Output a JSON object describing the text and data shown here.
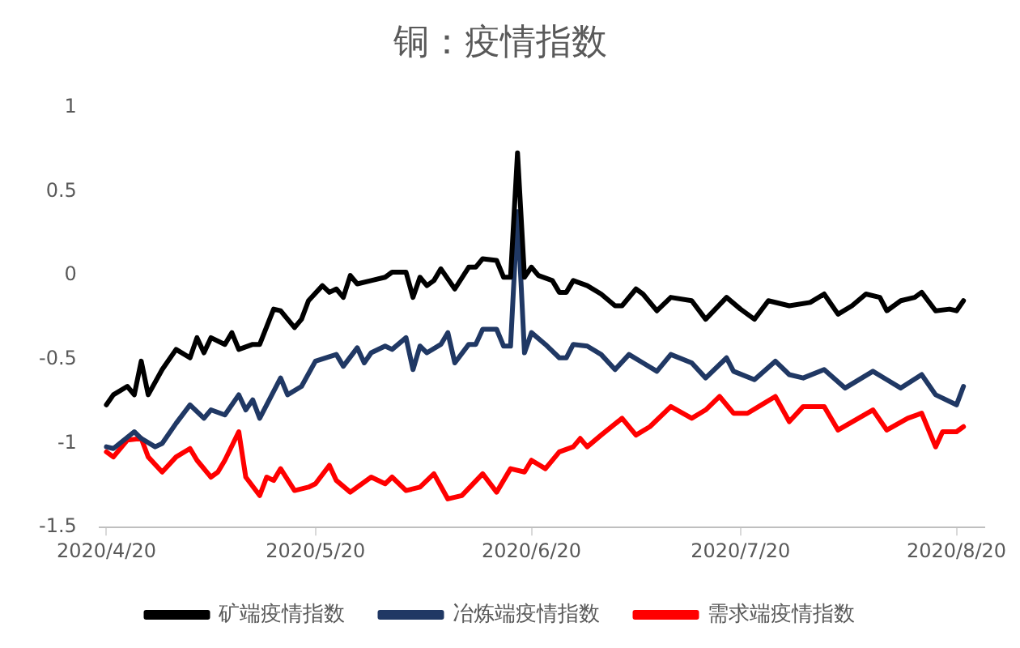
{
  "chart_data": {
    "type": "line",
    "title": "铜：疫情指数",
    "xlim": [
      "2020-04-19",
      "2020-08-24"
    ],
    "xticks": [
      {
        "value": "2020-04-20",
        "label": "2020/4/20"
      },
      {
        "value": "2020-05-20",
        "label": "2020/5/20"
      },
      {
        "value": "2020-06-20",
        "label": "2020/6/20"
      },
      {
        "value": "2020-07-20",
        "label": "2020/7/20"
      },
      {
        "value": "2020-08-20",
        "label": "2020/8/20"
      }
    ],
    "ylim": [
      -1.5,
      1
    ],
    "yticks": [
      -1.5,
      -1,
      -0.5,
      0,
      0.5,
      1
    ],
    "grid": false,
    "legend": "bottom",
    "marker": "none",
    "line_style": "solid",
    "series": [
      {
        "name": "矿端疫情指数",
        "color": "#000000",
        "x": [
          "2020-04-20",
          "2020-04-21",
          "2020-04-23",
          "2020-04-24",
          "2020-04-25",
          "2020-04-26",
          "2020-04-28",
          "2020-04-30",
          "2020-05-02",
          "2020-05-03",
          "2020-05-04",
          "2020-05-05",
          "2020-05-07",
          "2020-05-08",
          "2020-05-09",
          "2020-05-11",
          "2020-05-12",
          "2020-05-14",
          "2020-05-15",
          "2020-05-17",
          "2020-05-18",
          "2020-05-19",
          "2020-05-21",
          "2020-05-22",
          "2020-05-23",
          "2020-05-24",
          "2020-05-25",
          "2020-05-26",
          "2020-05-28",
          "2020-05-30",
          "2020-05-31",
          "2020-06-02",
          "2020-06-03",
          "2020-06-04",
          "2020-06-05",
          "2020-06-06",
          "2020-06-07",
          "2020-06-09",
          "2020-06-11",
          "2020-06-12",
          "2020-06-13",
          "2020-06-15",
          "2020-06-16",
          "2020-06-17",
          "2020-06-18",
          "2020-06-19",
          "2020-06-20",
          "2020-06-21",
          "2020-06-23",
          "2020-06-24",
          "2020-06-25",
          "2020-06-26",
          "2020-06-28",
          "2020-06-30",
          "2020-07-02",
          "2020-07-03",
          "2020-07-05",
          "2020-07-06",
          "2020-07-08",
          "2020-07-10",
          "2020-07-13",
          "2020-07-15",
          "2020-07-18",
          "2020-07-20",
          "2020-07-22",
          "2020-07-24",
          "2020-07-27",
          "2020-07-30",
          "2020-08-01",
          "2020-08-03",
          "2020-08-05",
          "2020-08-07",
          "2020-08-09",
          "2020-08-10",
          "2020-08-12",
          "2020-08-14",
          "2020-08-15",
          "2020-08-17",
          "2020-08-19",
          "2020-08-20",
          "2020-08-21"
        ],
        "values": [
          -0.77,
          -0.71,
          -0.66,
          -0.71,
          -0.51,
          -0.71,
          -0.56,
          -0.44,
          -0.49,
          -0.37,
          -0.46,
          -0.37,
          -0.41,
          -0.34,
          -0.44,
          -0.41,
          -0.41,
          -0.2,
          -0.21,
          -0.31,
          -0.26,
          -0.15,
          -0.06,
          -0.1,
          -0.08,
          -0.13,
          0,
          -0.05,
          -0.03,
          -0.01,
          0.02,
          0.02,
          -0.13,
          -0.01,
          -0.06,
          -0.03,
          0.04,
          -0.08,
          0.05,
          0.05,
          0.1,
          0.09,
          -0.01,
          -0.01,
          0.73,
          -0.01,
          0.05,
          0,
          -0.03,
          -0.1,
          -0.1,
          -0.03,
          -0.06,
          -0.11,
          -0.18,
          -0.18,
          -0.08,
          -0.11,
          -0.21,
          -0.13,
          -0.15,
          -0.26,
          -0.13,
          -0.2,
          -0.26,
          -0.15,
          -0.18,
          -0.16,
          -0.11,
          -0.23,
          -0.18,
          -0.11,
          -0.13,
          -0.21,
          -0.15,
          -0.13,
          -0.1,
          -0.21,
          -0.2,
          -0.21,
          -0.15
        ]
      },
      {
        "name": "冶炼端疫情指数",
        "color": "#203864",
        "x": [
          "2020-04-20",
          "2020-04-21",
          "2020-04-24",
          "2020-04-25",
          "2020-04-27",
          "2020-04-28",
          "2020-04-30",
          "2020-05-02",
          "2020-05-04",
          "2020-05-05",
          "2020-05-07",
          "2020-05-09",
          "2020-05-10",
          "2020-05-11",
          "2020-05-12",
          "2020-05-15",
          "2020-05-16",
          "2020-05-18",
          "2020-05-20",
          "2020-05-23",
          "2020-05-24",
          "2020-05-26",
          "2020-05-27",
          "2020-05-28",
          "2020-05-30",
          "2020-05-31",
          "2020-06-02",
          "2020-06-03",
          "2020-06-04",
          "2020-06-05",
          "2020-06-07",
          "2020-06-08",
          "2020-06-09",
          "2020-06-11",
          "2020-06-12",
          "2020-06-13",
          "2020-06-15",
          "2020-06-16",
          "2020-06-17",
          "2020-06-18",
          "2020-06-19",
          "2020-06-20",
          "2020-06-22",
          "2020-06-24",
          "2020-06-25",
          "2020-06-26",
          "2020-06-28",
          "2020-06-30",
          "2020-07-02",
          "2020-07-04",
          "2020-07-06",
          "2020-07-08",
          "2020-07-10",
          "2020-07-13",
          "2020-07-15",
          "2020-07-18",
          "2020-07-19",
          "2020-07-22",
          "2020-07-25",
          "2020-07-27",
          "2020-07-29",
          "2020-08-01",
          "2020-08-04",
          "2020-08-08",
          "2020-08-10",
          "2020-08-12",
          "2020-08-15",
          "2020-08-17",
          "2020-08-20",
          "2020-08-21"
        ],
        "values": [
          -1.02,
          -1.03,
          -0.93,
          -0.97,
          -1.02,
          -1,
          -0.88,
          -0.77,
          -0.85,
          -0.8,
          -0.83,
          -0.71,
          -0.8,
          -0.74,
          -0.85,
          -0.61,
          -0.71,
          -0.66,
          -0.51,
          -0.47,
          -0.54,
          -0.43,
          -0.52,
          -0.46,
          -0.42,
          -0.44,
          -0.37,
          -0.56,
          -0.42,
          -0.46,
          -0.41,
          -0.34,
          -0.52,
          -0.41,
          -0.41,
          -0.32,
          -0.32,
          -0.42,
          -0.42,
          0.38,
          -0.46,
          -0.34,
          -0.41,
          -0.49,
          -0.49,
          -0.41,
          -0.42,
          -0.47,
          -0.56,
          -0.47,
          -0.52,
          -0.57,
          -0.47,
          -0.52,
          -0.61,
          -0.49,
          -0.57,
          -0.62,
          -0.51,
          -0.59,
          -0.61,
          -0.56,
          -0.67,
          -0.57,
          -0.62,
          -0.67,
          -0.59,
          -0.71,
          -0.77,
          -0.66
        ]
      },
      {
        "name": "需求端疫情指数",
        "color": "#ff0000",
        "x": [
          "2020-04-20",
          "2020-04-21",
          "2020-04-23",
          "2020-04-25",
          "2020-04-26",
          "2020-04-28",
          "2020-04-30",
          "2020-05-02",
          "2020-05-03",
          "2020-05-05",
          "2020-05-06",
          "2020-05-07",
          "2020-05-09",
          "2020-05-10",
          "2020-05-12",
          "2020-05-13",
          "2020-05-14",
          "2020-05-15",
          "2020-05-17",
          "2020-05-19",
          "2020-05-20",
          "2020-05-22",
          "2020-05-23",
          "2020-05-25",
          "2020-05-28",
          "2020-05-30",
          "2020-05-31",
          "2020-06-02",
          "2020-06-04",
          "2020-06-06",
          "2020-06-08",
          "2020-06-10",
          "2020-06-13",
          "2020-06-15",
          "2020-06-17",
          "2020-06-19",
          "2020-06-20",
          "2020-06-22",
          "2020-06-24",
          "2020-06-26",
          "2020-06-27",
          "2020-06-28",
          "2020-06-30",
          "2020-07-03",
          "2020-07-05",
          "2020-07-07",
          "2020-07-10",
          "2020-07-13",
          "2020-07-15",
          "2020-07-17",
          "2020-07-19",
          "2020-07-21",
          "2020-07-23",
          "2020-07-25",
          "2020-07-27",
          "2020-07-29",
          "2020-08-01",
          "2020-08-03",
          "2020-08-08",
          "2020-08-10",
          "2020-08-13",
          "2020-08-15",
          "2020-08-17",
          "2020-08-18",
          "2020-08-20",
          "2020-08-21"
        ],
        "values": [
          -1.05,
          -1.08,
          -0.98,
          -0.97,
          -1.08,
          -1.17,
          -1.08,
          -1.03,
          -1.1,
          -1.2,
          -1.17,
          -1.1,
          -0.93,
          -1.2,
          -1.31,
          -1.2,
          -1.22,
          -1.15,
          -1.28,
          -1.26,
          -1.24,
          -1.13,
          -1.22,
          -1.29,
          -1.2,
          -1.24,
          -1.2,
          -1.28,
          -1.26,
          -1.18,
          -1.33,
          -1.31,
          -1.18,
          -1.29,
          -1.15,
          -1.17,
          -1.1,
          -1.15,
          -1.05,
          -1.02,
          -0.97,
          -1.02,
          -0.95,
          -0.85,
          -0.95,
          -0.9,
          -0.78,
          -0.85,
          -0.8,
          -0.72,
          -0.82,
          -0.82,
          -0.77,
          -0.72,
          -0.87,
          -0.78,
          -0.78,
          -0.92,
          -0.8,
          -0.92,
          -0.85,
          -0.82,
          -1.02,
          -0.93,
          -0.93,
          -0.9
        ]
      }
    ]
  }
}
